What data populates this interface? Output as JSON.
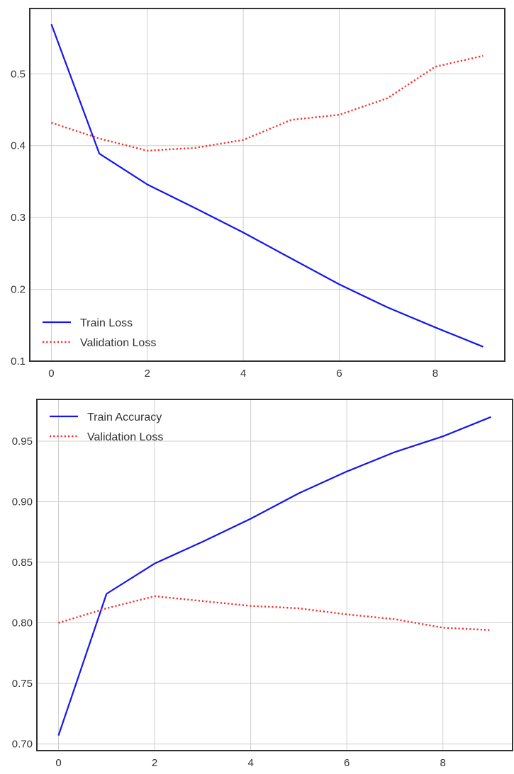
{
  "chart_data": [
    {
      "type": "line",
      "title": "",
      "xlabel": "",
      "ylabel": "",
      "x": [
        0,
        1,
        2,
        3,
        4,
        5,
        6,
        7,
        8,
        9
      ],
      "xlim": [
        -0.45,
        9.45
      ],
      "ylim": [
        0.1,
        0.591
      ],
      "xticks": [
        0,
        2,
        4,
        6,
        8
      ],
      "xtick_labels": [
        "0",
        "2",
        "4",
        "6",
        "8"
      ],
      "yticks": [
        0.1,
        0.2,
        0.3,
        0.4,
        0.5
      ],
      "ytick_labels": [
        "0.1",
        "0.2",
        "0.3",
        "0.4",
        "0.5"
      ],
      "grid": true,
      "legend_position": "lower-left",
      "series": [
        {
          "name": "Train Loss",
          "color": "#1515f0",
          "style": "solid",
          "values": [
            0.569,
            0.389,
            0.346,
            0.313,
            0.279,
            0.243,
            0.207,
            0.175,
            0.147,
            0.12
          ]
        },
        {
          "name": "Validation Loss",
          "color": "#ff2a2a",
          "style": "dotted",
          "values": [
            0.432,
            0.41,
            0.393,
            0.397,
            0.408,
            0.436,
            0.443,
            0.466,
            0.51,
            0.525
          ]
        }
      ]
    },
    {
      "type": "line",
      "title": "",
      "xlabel": "",
      "ylabel": "",
      "x": [
        0,
        1,
        2,
        3,
        4,
        5,
        6,
        7,
        8,
        9
      ],
      "xlim": [
        -0.45,
        9.45
      ],
      "ylim": [
        0.6945,
        0.9845
      ],
      "xticks": [
        0,
        2,
        4,
        6,
        8
      ],
      "xtick_labels": [
        "0",
        "2",
        "4",
        "6",
        "8"
      ],
      "yticks": [
        0.7,
        0.75,
        0.8,
        0.85,
        0.9,
        0.95
      ],
      "ytick_labels": [
        "0.70",
        "0.75",
        "0.80",
        "0.85",
        "0.90",
        "0.95"
      ],
      "grid": true,
      "legend_position": "upper-left",
      "series": [
        {
          "name": "Train Accuracy",
          "color": "#1515f0",
          "style": "solid",
          "values": [
            0.707,
            0.824,
            0.849,
            0.867,
            0.886,
            0.907,
            0.925,
            0.941,
            0.954,
            0.97
          ]
        },
        {
          "name": "Validation Loss",
          "color": "#ff2a2a",
          "style": "dotted",
          "values": [
            0.8,
            0.812,
            0.822,
            0.818,
            0.814,
            0.812,
            0.807,
            0.803,
            0.796,
            0.794
          ]
        }
      ]
    }
  ]
}
